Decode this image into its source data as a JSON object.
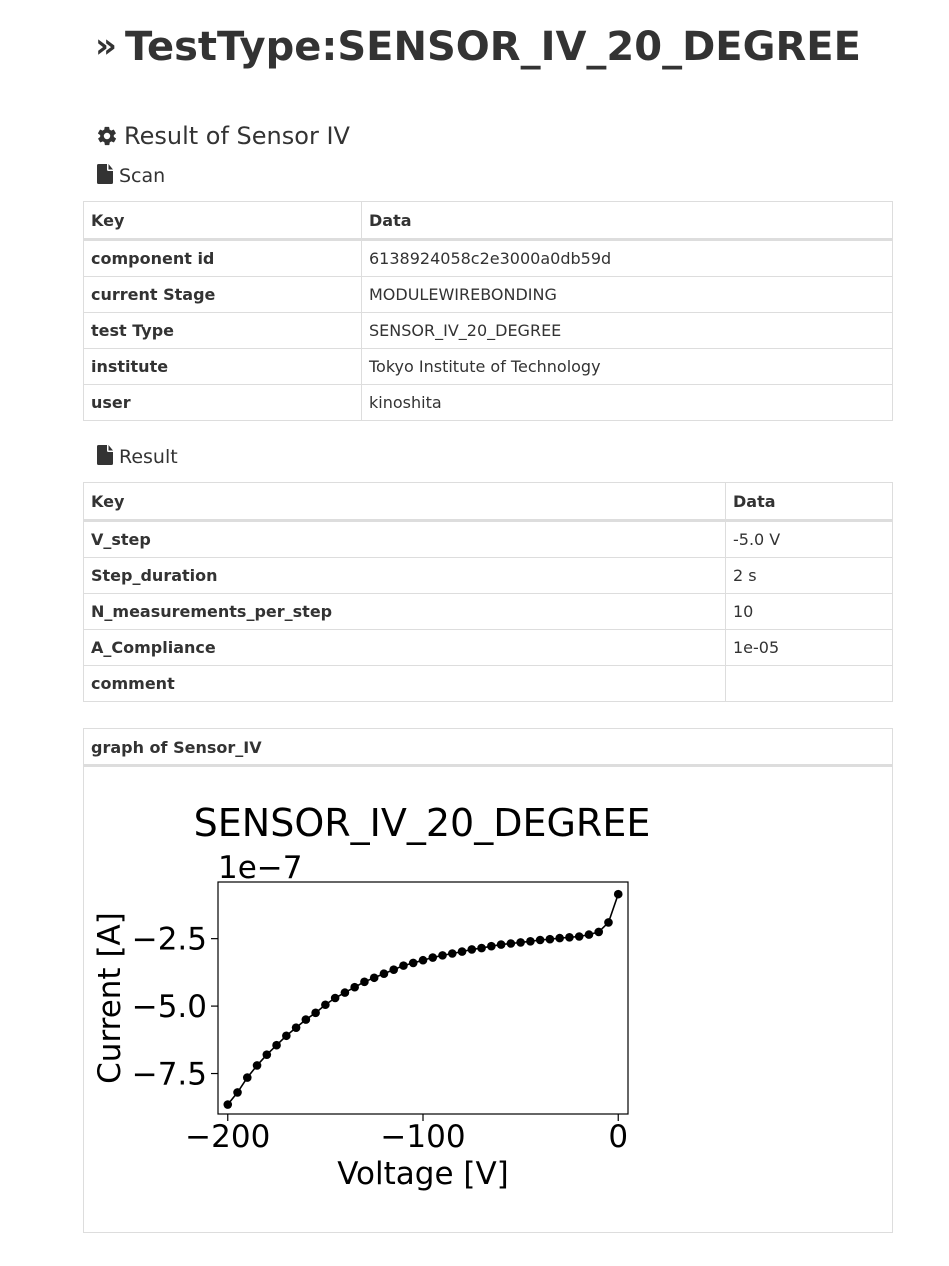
{
  "page": {
    "title": "TestType:SENSOR_IV_20_DEGREE",
    "section_title": "Result of Sensor IV"
  },
  "scan": {
    "title": "Scan",
    "header": {
      "key": "Key",
      "data": "Data"
    },
    "rows": [
      {
        "key": "component id",
        "value": "6138924058c2e3000a0db59d"
      },
      {
        "key": "current Stage",
        "value": "MODULEWIREBONDING"
      },
      {
        "key": "test Type",
        "value": "SENSOR_IV_20_DEGREE"
      },
      {
        "key": "institute",
        "value": "Tokyo Institute of Technology"
      },
      {
        "key": "user",
        "value": "kinoshita"
      }
    ]
  },
  "result": {
    "title": "Result",
    "header": {
      "key": "Key",
      "data": "Data"
    },
    "rows": [
      {
        "key": "V_step",
        "value": "-5.0 V"
      },
      {
        "key": "Step_duration",
        "value": "2 s"
      },
      {
        "key": "N_measurements_per_step",
        "value": "10"
      },
      {
        "key": "A_Compliance",
        "value": "1e-05"
      },
      {
        "key": "comment",
        "value": ""
      }
    ]
  },
  "graph": {
    "header": "graph of Sensor_IV"
  },
  "chart_data": {
    "type": "line",
    "title": "SENSOR_IV_20_DEGREE",
    "xlabel": "Voltage [V]",
    "ylabel": "Current [A]",
    "offset_label": "1e−7",
    "xlim": [
      -205,
      5
    ],
    "ylim": [
      -9.0,
      -0.4
    ],
    "xticks": [
      -200,
      -100,
      0
    ],
    "xtick_labels": [
      "−200",
      "−100",
      "0"
    ],
    "yticks": [
      -2.5,
      -5.0,
      -7.5
    ],
    "ytick_labels": [
      "−2.5",
      "−5.0",
      "−7.5"
    ],
    "grid": false,
    "marker": "circle",
    "color": "#000000",
    "series": [
      {
        "x": [
          -200,
          -195,
          -190,
          -185,
          -180,
          -175,
          -170,
          -165,
          -160,
          -155,
          -150,
          -145,
          -140,
          -135,
          -130,
          -125,
          -120,
          -115,
          -110,
          -105,
          -100,
          -95,
          -90,
          -85,
          -80,
          -75,
          -70,
          -65,
          -60,
          -55,
          -50,
          -45,
          -40,
          -35,
          -30,
          -25,
          -20,
          -15,
          -10,
          -5,
          0
        ],
        "y": [
          -8.65,
          -8.2,
          -7.65,
          -7.2,
          -6.8,
          -6.45,
          -6.1,
          -5.8,
          -5.5,
          -5.25,
          -4.95,
          -4.7,
          -4.5,
          -4.3,
          -4.1,
          -3.95,
          -3.8,
          -3.65,
          -3.5,
          -3.4,
          -3.3,
          -3.2,
          -3.12,
          -3.05,
          -2.98,
          -2.9,
          -2.85,
          -2.78,
          -2.72,
          -2.68,
          -2.64,
          -2.6,
          -2.55,
          -2.52,
          -2.48,
          -2.45,
          -2.42,
          -2.35,
          -2.25,
          -1.9,
          -0.85
        ]
      }
    ]
  }
}
